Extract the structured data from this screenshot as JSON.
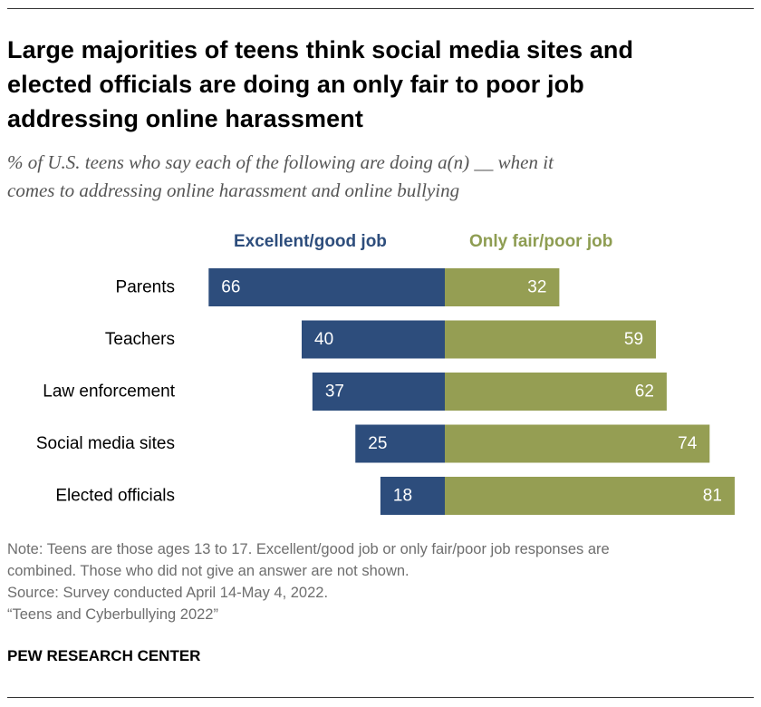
{
  "header": {
    "title_line1": "Large majorities of teens think social media sites and",
    "title_line2": "elected officials are doing an only fair to poor job",
    "title_line3": "addressing online harassment",
    "subtitle_line1": "% of U.S. teens who say each of the following are doing a(n) __ when it",
    "subtitle_line2": "comes to addressing online harassment and online bullying"
  },
  "legend": {
    "good": "Excellent/good job",
    "fair": "Only fair/poor job"
  },
  "colors": {
    "good": "#2d4d7c",
    "fair": "#959e53",
    "good_text": "#2d4d7c",
    "fair_text": "#8e9d52"
  },
  "chart_data": {
    "type": "bar",
    "orientation": "diverging-horizontal",
    "categories": [
      "Parents",
      "Teachers",
      "Law enforcement",
      "Social media sites",
      "Elected officials"
    ],
    "series": [
      {
        "name": "Excellent/good job",
        "values": [
          66,
          40,
          37,
          25,
          18
        ]
      },
      {
        "name": "Only fair/poor job",
        "values": [
          32,
          59,
          62,
          74,
          81
        ]
      }
    ],
    "xlim": [
      -100,
      100
    ],
    "unit": "%"
  },
  "footer": {
    "note_line1": "Note: Teens are those ages 13 to 17. Excellent/good job or only fair/poor job responses are",
    "note_line2": "combined. Those who did not give an answer are not shown.",
    "source": "Source: Survey conducted April 14-May 4, 2022.",
    "report": "“Teens and Cyberbullying 2022”",
    "org": "PEW RESEARCH CENTER"
  }
}
